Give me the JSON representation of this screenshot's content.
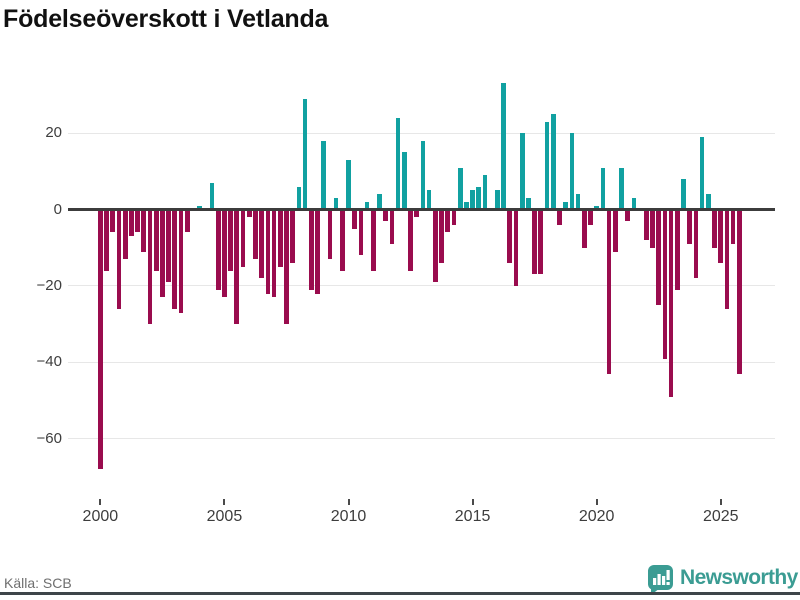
{
  "title": "Födelseöverskott i Vetlanda",
  "source": "Källa: SCB",
  "branding": {
    "name": "Newsworthy"
  },
  "colors": {
    "positive": "#11a1a1",
    "negative": "#9a0c4e",
    "axis": "#3c3c3c",
    "gridline": "#e7e7e7",
    "tick_label": "#3d3d3d",
    "source_text": "#6f6f6f",
    "brand_teal": "#3b9c93"
  },
  "chart_data": {
    "type": "bar",
    "title": "Födelseöverskott i Vetlanda",
    "xlabel": "",
    "ylabel": "",
    "grid": true,
    "ylim": [
      -72,
      36
    ],
    "y_ticks": [
      {
        "value": 20,
        "label": "20"
      },
      {
        "value": 0,
        "label": "0"
      },
      {
        "value": -20,
        "label": "−20"
      },
      {
        "value": -40,
        "label": "−40"
      },
      {
        "value": -60,
        "label": "−60"
      }
    ],
    "x_ticks": [
      {
        "year": 2000,
        "label": "2000"
      },
      {
        "year": 2005,
        "label": "2005"
      },
      {
        "year": 2010,
        "label": "2010"
      },
      {
        "year": 2015,
        "label": "2015"
      },
      {
        "year": 2020,
        "label": "2020"
      },
      {
        "year": 2025,
        "label": "2025"
      }
    ],
    "x": [
      "2000 Q1",
      "2000 Q2",
      "2000 Q3",
      "2000 Q4",
      "2001 Q1",
      "2001 Q2",
      "2001 Q3",
      "2001 Q4",
      "2002 Q1",
      "2002 Q2",
      "2002 Q3",
      "2002 Q4",
      "2003 Q1",
      "2003 Q2",
      "2003 Q3",
      "2003 Q4",
      "2004 Q1",
      "2004 Q2",
      "2004 Q3",
      "2004 Q4",
      "2005 Q1",
      "2005 Q2",
      "2005 Q3",
      "2005 Q4",
      "2006 Q1",
      "2006 Q2",
      "2006 Q3",
      "2006 Q4",
      "2007 Q1",
      "2007 Q2",
      "2007 Q3",
      "2007 Q4",
      "2008 Q1",
      "2008 Q2",
      "2008 Q3",
      "2008 Q4",
      "2009 Q1",
      "2009 Q2",
      "2009 Q3",
      "2009 Q4",
      "2010 Q1",
      "2010 Q2",
      "2010 Q3",
      "2010 Q4",
      "2011 Q1",
      "2011 Q2",
      "2011 Q3",
      "2011 Q4",
      "2012 Q1",
      "2012 Q2",
      "2012 Q3",
      "2012 Q4",
      "2013 Q1",
      "2013 Q2",
      "2013 Q3",
      "2013 Q4",
      "2014 Q1",
      "2014 Q2",
      "2014 Q3",
      "2014 Q4",
      "2015 Q1",
      "2015 Q2",
      "2015 Q3",
      "2015 Q4",
      "2016 Q1",
      "2016 Q2",
      "2016 Q3",
      "2016 Q4",
      "2017 Q1",
      "2017 Q2",
      "2017 Q3",
      "2017 Q4",
      "2018 Q1",
      "2018 Q2",
      "2018 Q3",
      "2018 Q4",
      "2019 Q1",
      "2019 Q2",
      "2019 Q3",
      "2019 Q4",
      "2020 Q1",
      "2020 Q2",
      "2020 Q3",
      "2020 Q4",
      "2021 Q1",
      "2021 Q2",
      "2021 Q3",
      "2021 Q4",
      "2022 Q1",
      "2022 Q2",
      "2022 Q3",
      "2022 Q4",
      "2023 Q1",
      "2023 Q2",
      "2023 Q3",
      "2023 Q4",
      "2024 Q1",
      "2024 Q2",
      "2024 Q3",
      "2024 Q4",
      "2025 Q1",
      "2025 Q2",
      "2025 Q3",
      "2025 Q4"
    ],
    "values": [
      -68,
      -16,
      -6,
      -26,
      -13,
      -7,
      -6,
      -11,
      -30,
      -16,
      -23,
      -19,
      -26,
      -27,
      -6,
      0,
      1,
      0,
      7,
      -21,
      -23,
      -16,
      -30,
      -15,
      -2,
      -13,
      -18,
      -22,
      -23,
      -15,
      -30,
      -14,
      6,
      29,
      -21,
      -22,
      18,
      -13,
      3,
      -16,
      13,
      -5,
      -12,
      2,
      -16,
      4,
      -3,
      -9,
      24,
      15,
      -16,
      -2,
      18,
      5,
      -19,
      -14,
      -6,
      -4,
      11,
      2,
      5,
      6,
      9,
      0,
      5,
      33,
      -14,
      -20,
      20,
      3,
      -17,
      -17,
      23,
      25,
      -4,
      2,
      20,
      4,
      -10,
      -4,
      1,
      11,
      -43,
      -11,
      11,
      -3,
      3,
      0,
      -8,
      -10,
      -25,
      -39,
      -49,
      -21,
      8,
      -9,
      -18,
      19,
      4,
      -10,
      -14,
      -26,
      -9,
      -43
    ]
  }
}
